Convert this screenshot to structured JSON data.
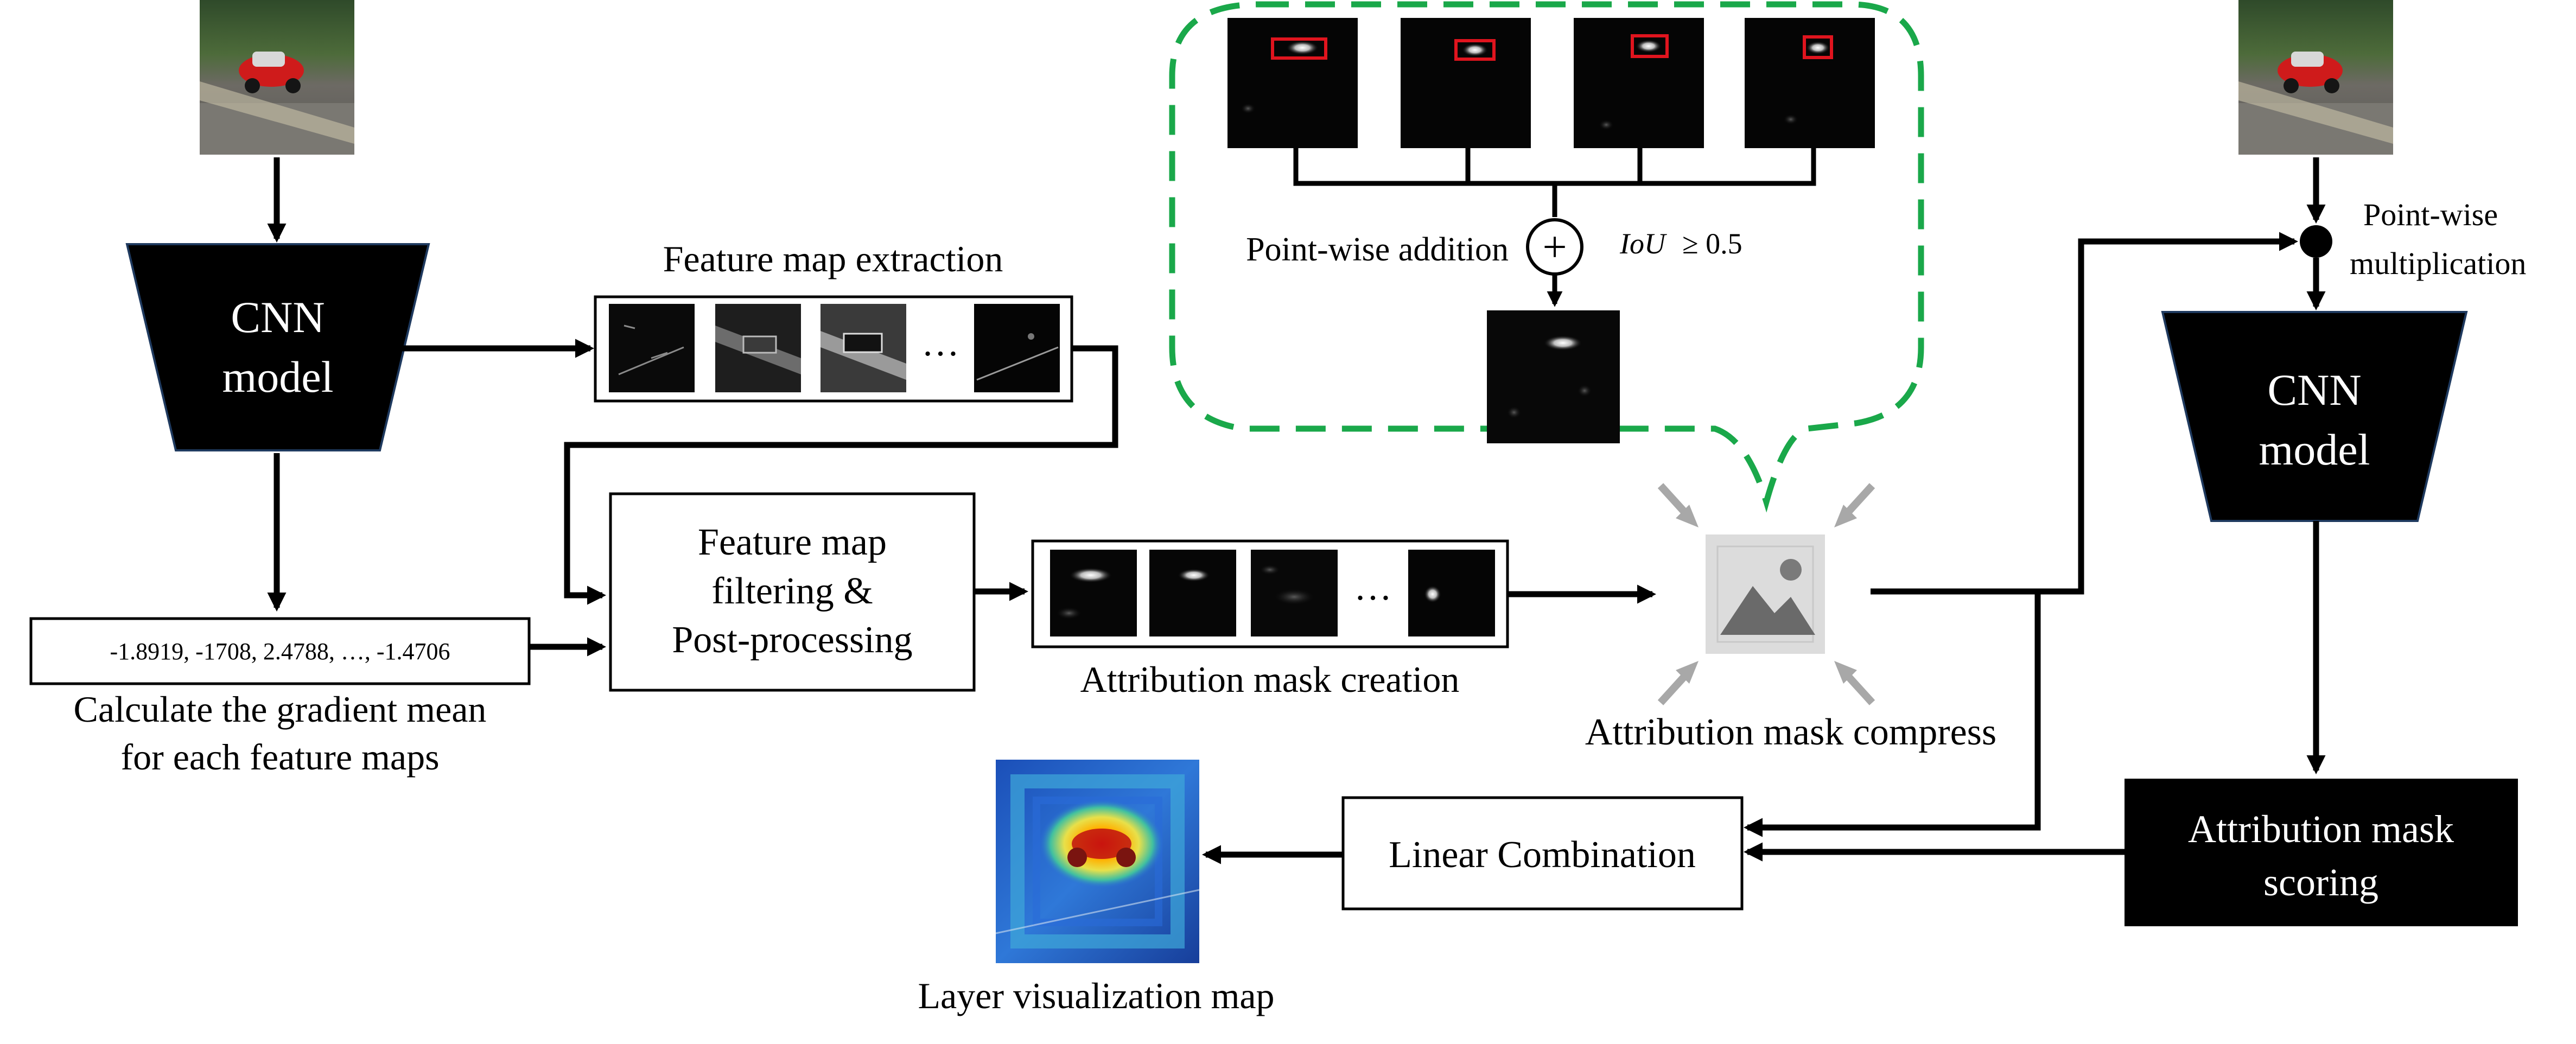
{
  "cnn_left": {
    "label_line1": "CNN",
    "label_line2": "model"
  },
  "cnn_right": {
    "label_line1": "CNN",
    "label_line2": "model"
  },
  "feature_extraction": {
    "title": "Feature map extraction",
    "ellipsis": "…"
  },
  "gradient": {
    "values": "-1.8919, -1708, 2.4788, …, -1.4706",
    "caption_line1": "Calculate the gradient mean",
    "caption_line2": "for each feature maps"
  },
  "filtering": {
    "line1": "Feature map",
    "line2": "filtering &",
    "line3": "Post-processing"
  },
  "mask_creation": {
    "caption": "Attribution mask creation",
    "ellipsis": "…"
  },
  "compress": {
    "caption": "Attribution mask compress"
  },
  "inset": {
    "addition_label": "Point-wise addition",
    "plus_symbol": "+",
    "iou_label": "IoU",
    "iou_condition": "≥  0.5"
  },
  "multiplication": {
    "line1": "Point-wise",
    "line2": "multiplication"
  },
  "scoring": {
    "line1": "Attribution mask",
    "line2": "scoring"
  },
  "linear": {
    "label": "Linear Combination"
  },
  "visualization": {
    "caption": "Layer visualization map"
  },
  "colors": {
    "inset_border": "#1aa84a",
    "box_fill": "#000000",
    "box_border": "#1f3a5f",
    "arrow": "#000000",
    "highlight": "#e0141e",
    "compress_grey": "#a8a8a8"
  }
}
